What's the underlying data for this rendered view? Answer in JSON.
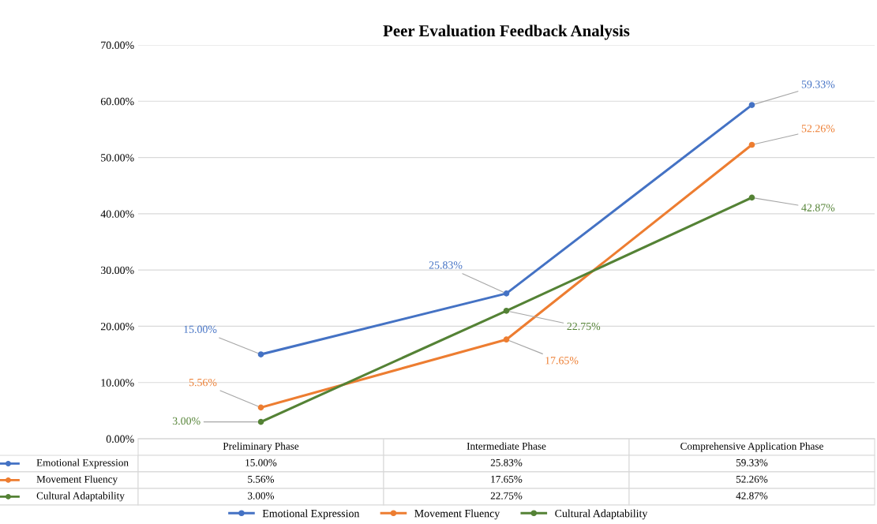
{
  "chart_data": {
    "type": "line",
    "title": "Peer Evaluation Feedback Analysis",
    "categories": [
      "Preliminary Phase",
      "Intermediate Phase",
      "Comprehensive Application Phase"
    ],
    "series": [
      {
        "name": "Emotional Expression",
        "color": "#4472c4",
        "values": [
          15.0,
          25.83,
          59.33
        ],
        "value_labels": [
          "15.00%",
          "25.83%",
          "59.33%"
        ]
      },
      {
        "name": "Movement Fluency",
        "color": "#ed7d31",
        "values": [
          5.56,
          17.65,
          52.26
        ],
        "value_labels": [
          "5.56%",
          "17.65%",
          "52.26%"
        ]
      },
      {
        "name": "Cultural Adaptability",
        "color": "#548235",
        "values": [
          3.0,
          22.75,
          42.87
        ],
        "value_labels": [
          "3.00%",
          "22.75%",
          "42.87%"
        ]
      }
    ],
    "ylim": [
      0,
      70
    ],
    "yticks": [
      {
        "value": 0,
        "label": "0.00%"
      },
      {
        "value": 10,
        "label": "10.00%"
      },
      {
        "value": 20,
        "label": "20.00%"
      },
      {
        "value": 30,
        "label": "30.00%"
      },
      {
        "value": 40,
        "label": "40.00%"
      },
      {
        "value": 50,
        "label": "50.00%"
      },
      {
        "value": 60,
        "label": "60.00%"
      },
      {
        "value": 70,
        "label": "70.00%"
      }
    ],
    "grid": "y",
    "legend": "bottom",
    "marker": "circle",
    "line_style": "solid"
  }
}
